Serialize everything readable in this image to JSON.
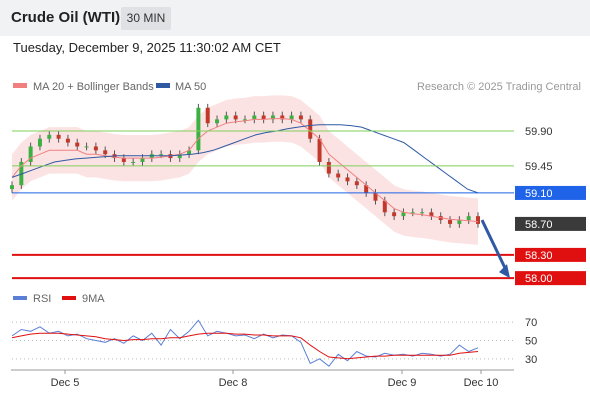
{
  "header": {
    "title": "Crude Oil (WTI)",
    "timeframe": "30 MIN",
    "datetime": "Tuesday, December 9, 2025 11:30:02 AM CET"
  },
  "chart_data": {
    "type": "line",
    "instrument": "Crude Oil (WTI)",
    "interval": "30 MIN",
    "legend": [
      {
        "name": "MA 20 + Bollinger Bands",
        "color": "#f08080"
      },
      {
        "name": "MA 50",
        "color": "#2f5aa3"
      }
    ],
    "attribution": "Research © 2025 Trading Central",
    "x_labels": [
      "Dec 5",
      "Dec 8",
      "Dec 9",
      "Dec 10"
    ],
    "price_axis": {
      "min": 57.95,
      "max": 60.3
    },
    "levels": [
      {
        "value": 59.9,
        "label": "59.90",
        "kind": "resistance",
        "color": "#7fcf5a"
      },
      {
        "value": 59.45,
        "label": "59.45",
        "kind": "resistance",
        "color": "#7fcf5a"
      },
      {
        "value": 59.1,
        "label": "59.10",
        "kind": "pivot",
        "color": "#1e63e8"
      },
      {
        "value": 58.7,
        "label": "58.70",
        "kind": "last-price",
        "color": "#3a3a3a"
      },
      {
        "value": 58.3,
        "label": "58.30",
        "kind": "target",
        "color": "#e01010"
      },
      {
        "value": 58.0,
        "label": "58.00",
        "kind": "target",
        "color": "#e01010"
      }
    ],
    "price_series": [
      59.2,
      59.5,
      59.7,
      59.8,
      59.85,
      59.8,
      59.75,
      59.7,
      59.7,
      59.65,
      59.6,
      59.55,
      59.5,
      59.5,
      59.55,
      59.6,
      59.6,
      59.55,
      59.6,
      59.65,
      60.2,
      60.0,
      60.05,
      60.1,
      60.05,
      60.05,
      60.1,
      60.05,
      60.1,
      60.05,
      60.1,
      60.05,
      59.8,
      59.5,
      59.35,
      59.3,
      59.25,
      59.2,
      59.1,
      59.0,
      58.85,
      58.8,
      58.85,
      58.85,
      58.85,
      58.8,
      58.75,
      58.7,
      58.75,
      58.8,
      58.7
    ],
    "ma20_series": [
      59.3,
      59.45,
      59.55,
      59.6,
      59.65,
      59.65,
      59.65,
      59.65,
      59.6,
      59.6,
      59.58,
      59.56,
      59.55,
      59.55,
      59.55,
      59.55,
      59.56,
      59.58,
      59.6,
      59.65,
      59.8,
      59.9,
      59.95,
      60.0,
      60.02,
      60.03,
      60.05,
      60.05,
      60.06,
      60.06,
      60.05,
      60.0,
      59.9,
      59.8,
      59.6,
      59.5,
      59.4,
      59.3,
      59.2,
      59.1,
      59.0,
      58.9,
      58.85,
      58.83,
      58.82,
      58.8,
      58.78,
      58.76,
      58.75,
      58.74,
      58.73
    ],
    "bollinger_width": 0.3,
    "ma50_series": [
      59.3,
      59.35,
      59.4,
      59.45,
      59.5,
      59.52,
      59.54,
      59.55,
      59.56,
      59.57,
      59.58,
      59.58,
      59.58,
      59.58,
      59.58,
      59.58,
      59.59,
      59.6,
      59.62,
      59.65,
      59.7,
      59.75,
      59.8,
      59.85,
      59.88,
      59.9,
      59.93,
      59.95,
      59.97,
      59.98,
      59.98,
      59.98,
      59.97,
      59.95,
      59.9,
      59.85,
      59.8,
      59.75,
      59.65,
      59.55,
      59.45,
      59.35,
      59.25,
      59.15,
      59.1
    ],
    "forecast_arrow": {
      "from": 58.75,
      "to": 58.0
    },
    "rsi_legend": [
      {
        "name": "RSI",
        "color": "#5b7fd6"
      },
      {
        "name": "9MA",
        "color": "#e01010"
      }
    ],
    "rsi_axis": {
      "min": 20,
      "max": 80,
      "ticks": [
        "70",
        "50",
        "30"
      ]
    },
    "rsi_series": [
      55,
      62,
      60,
      65,
      58,
      60,
      55,
      57,
      52,
      50,
      48,
      52,
      47,
      55,
      50,
      58,
      45,
      62,
      52,
      60,
      72,
      55,
      60,
      58,
      55,
      56,
      52,
      57,
      53,
      56,
      55,
      48,
      25,
      30,
      22,
      35,
      28,
      38,
      33,
      32,
      36,
      34,
      35,
      33,
      36,
      35,
      33,
      35,
      45,
      38,
      42
    ],
    "rsi_ma_series": [
      53,
      55,
      57,
      58,
      58,
      58,
      57,
      56,
      55,
      54,
      52,
      51,
      50,
      51,
      51,
      52,
      52,
      53,
      53,
      55,
      57,
      58,
      58,
      58,
      57,
      57,
      56,
      56,
      55,
      55,
      55,
      53,
      45,
      38,
      32,
      31,
      30,
      31,
      32,
      33,
      33,
      34,
      34,
      34,
      34,
      34,
      34,
      34,
      36,
      37,
      38
    ]
  }
}
